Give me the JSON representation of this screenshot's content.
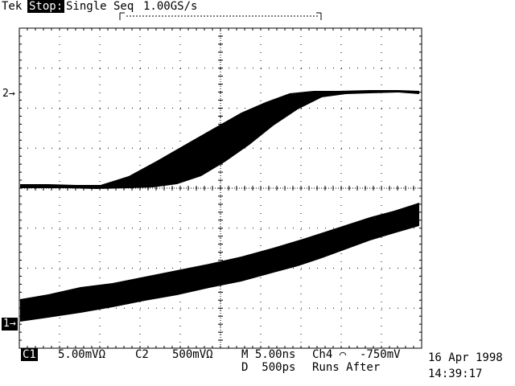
{
  "header": {
    "brand": "Tek",
    "state": "Stop:",
    "mode": "Single Seq",
    "sample_rate": "1.00GS/s",
    "record_bracket_left": "T",
    "record_bracket_right": "]"
  },
  "markers": {
    "ch2": "2→",
    "ch1": "1→"
  },
  "readout": {
    "ch1_label": "C1",
    "ch1_scale": "5.00mVΩ",
    "ch2_label": "C2",
    "ch2_scale": "500mVΩ",
    "main_timebase": "M 5.00ns",
    "delayed_timebase": "D  500ps",
    "trigger": "Ch4 ⌒  -750mV",
    "trigger_mode": "Runs After",
    "date": "16 Apr 1998",
    "time": "14:39:17"
  },
  "colors": {
    "trace": "#000000",
    "background": "#ffffff",
    "graticule": "#000000"
  }
}
